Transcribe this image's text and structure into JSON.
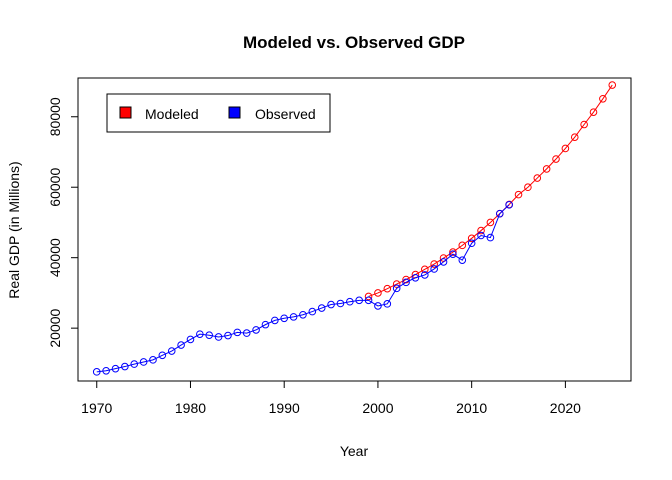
{
  "chart_data": {
    "type": "line",
    "title": "Modeled vs. Observed GDP",
    "xlabel": "Year",
    "ylabel": "Real GDP (in Millions)",
    "xlim": [
      1968,
      2027
    ],
    "ylim": [
      5000,
      91000
    ],
    "x_ticks": [
      1970,
      1980,
      1990,
      2000,
      2010,
      2020
    ],
    "y_ticks": [
      20000,
      40000,
      60000,
      80000
    ],
    "legend": {
      "placement": "top-left",
      "entries": [
        {
          "label": "Modeled",
          "color": "#ff0000"
        },
        {
          "label": "Observed",
          "color": "#0000ff"
        }
      ]
    },
    "series": [
      {
        "name": "Modeled",
        "color": "#ff0000",
        "x": [
          1999,
          2000,
          2001,
          2002,
          2003,
          2004,
          2005,
          2006,
          2007,
          2008,
          2009,
          2010,
          2011,
          2012,
          2013,
          2014,
          2015,
          2016,
          2017,
          2018,
          2019,
          2020,
          2021,
          2022,
          2023,
          2024,
          2025
        ],
        "y": [
          29000,
          30000,
          31200,
          32500,
          33800,
          35200,
          36700,
          38200,
          39900,
          41600,
          43500,
          45500,
          47700,
          50000,
          52500,
          55100,
          57900,
          60000,
          62600,
          65200,
          68000,
          71000,
          74200,
          77800,
          81300,
          85100,
          89000
        ]
      },
      {
        "name": "Observed",
        "color": "#0000ff",
        "x": [
          1970,
          1971,
          1972,
          1973,
          1974,
          1975,
          1976,
          1977,
          1978,
          1979,
          1980,
          1981,
          1982,
          1983,
          1984,
          1985,
          1986,
          1987,
          1988,
          1989,
          1990,
          1991,
          1992,
          1993,
          1994,
          1995,
          1996,
          1997,
          1998,
          1999,
          2000,
          2001,
          2002,
          2003,
          2004,
          2005,
          2006,
          2007,
          2008,
          2009,
          2010,
          2011,
          2012,
          2013,
          2014
        ],
        "y": [
          7600,
          7900,
          8500,
          9100,
          9800,
          10400,
          11000,
          12300,
          13500,
          15200,
          16800,
          18300,
          18000,
          17500,
          17900,
          18800,
          18600,
          19500,
          21000,
          22200,
          22800,
          23200,
          23800,
          24700,
          25700,
          26700,
          27000,
          27500,
          27900,
          27900,
          26300,
          26900,
          31300,
          33000,
          34300,
          35100,
          36800,
          38800,
          41000,
          39300,
          44100,
          46300,
          45700,
          52500,
          55000
        ]
      }
    ]
  }
}
